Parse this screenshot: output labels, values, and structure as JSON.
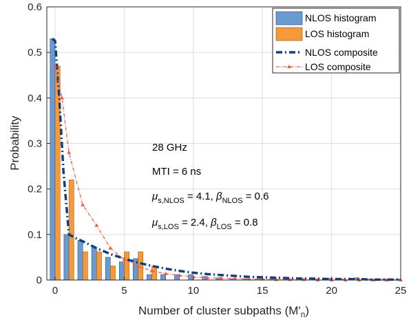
{
  "chart_data": {
    "type": "bar",
    "xlabel": "Number of cluster subpaths (M'",
    "xlabel_sub": "n",
    "xlabel_close": ")",
    "ylabel": "Probability",
    "xlim": [
      -0.6,
      25
    ],
    "ylim": [
      0,
      0.6
    ],
    "xticks": [
      0,
      5,
      10,
      15,
      20,
      25
    ],
    "yticks": [
      0,
      0.1,
      0.2,
      0.3,
      0.4,
      0.5,
      0.6
    ],
    "grid": true,
    "legend_position": "top-right",
    "categories": [
      0,
      1,
      2,
      3,
      4,
      5,
      6,
      7,
      8,
      9,
      10,
      11,
      12,
      13,
      14,
      15,
      16,
      17,
      18,
      19,
      20,
      21,
      22,
      23,
      24,
      25
    ],
    "series": [
      {
        "name": "NLOS histogram",
        "kind": "bar",
        "color": "#6a9bd0",
        "values": [
          0.53,
          0.1,
          0.087,
          0.072,
          0.05,
          0.04,
          0.047,
          0.012,
          0.012,
          0.012,
          0.012,
          0.008,
          0.005,
          0.003,
          0.003,
          0.003,
          0.003,
          0.002,
          0.003,
          0.002,
          0.004,
          0.002,
          0.005,
          0.002,
          0.002,
          0.002
        ]
      },
      {
        "name": "LOS histogram",
        "kind": "bar",
        "color": "#f59a3b",
        "values": [
          0.47,
          0.22,
          0.062,
          0.062,
          0.031,
          0.062,
          0.062,
          0.031,
          0.0,
          0.0,
          0.0,
          0.0,
          0.0,
          0.0,
          0.0,
          0.0,
          0.0,
          0.0,
          0.0,
          0.0,
          0.0,
          0.0,
          0.0,
          0.0,
          0.0,
          0.0
        ]
      },
      {
        "name": "NLOS composite",
        "kind": "line",
        "color": "#123f7a",
        "x": [
          -0.2,
          0,
          0.3,
          0.6,
          1,
          1.5,
          2,
          3,
          4,
          5,
          6,
          7,
          8,
          9,
          10,
          11,
          12,
          13,
          14,
          15,
          16,
          17,
          18,
          19,
          20,
          21,
          22,
          23,
          24,
          25
        ],
        "values": [
          0.53,
          0.525,
          0.4,
          0.24,
          0.1,
          0.092,
          0.085,
          0.07,
          0.057,
          0.047,
          0.038,
          0.031,
          0.025,
          0.02,
          0.016,
          0.013,
          0.011,
          0.009,
          0.007,
          0.006,
          0.005,
          0.004,
          0.003,
          0.003,
          0.002,
          0.002,
          0.002,
          0.001,
          0.001,
          0.001
        ]
      },
      {
        "name": "LOS composite",
        "kind": "line",
        "color": "#ee5b4c",
        "x": [
          0,
          0.5,
          1,
          2,
          3,
          4,
          5,
          6,
          7,
          8,
          9,
          10,
          11,
          12,
          13,
          14,
          15,
          16,
          17,
          18,
          19,
          20,
          21,
          22,
          23,
          24,
          25
        ],
        "values": [
          0.47,
          0.4,
          0.28,
          0.165,
          0.12,
          0.07,
          0.045,
          0.03,
          0.02,
          0.014,
          0.01,
          0.007,
          0.005,
          0.004,
          0.003,
          0.002,
          0.002,
          0.001,
          0.001,
          0.001,
          0.0,
          0.0,
          0.0,
          0.0,
          0.0,
          0.0,
          0.0
        ]
      }
    ],
    "annotations": {
      "freq": "28 GHz",
      "mti": "MTI = 6 ns",
      "nlos_params": {
        "mu": "μ",
        "mu_sub": "s,NLOS",
        "mu_val": " = 4.1, ",
        "beta": "β",
        "beta_sub": "NLOS",
        "beta_val": " = 0.6"
      },
      "los_params": {
        "mu": "μ",
        "mu_sub": "s,LOS",
        "mu_val": " = 2.4, ",
        "beta": "β",
        "beta_sub": "LOS",
        "beta_val": " = 0.8"
      }
    }
  }
}
